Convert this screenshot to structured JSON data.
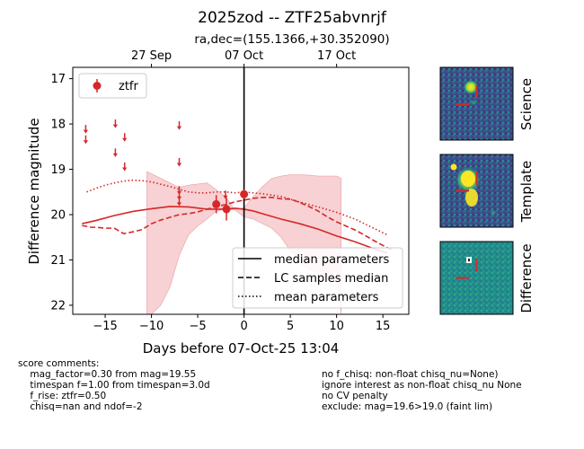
{
  "title": "2025zod -- ZTF25abvnrjf",
  "subtitle": "ra,dec=(155.1366,+30.352090)",
  "chart_data": {
    "type": "scatter",
    "xlabel": "Days before 07-Oct-25 13:04",
    "ylabel": "Difference magnitude",
    "xlim": [
      -18.5,
      17.8
    ],
    "ylim": [
      22.2,
      16.75
    ],
    "y_inverted": true,
    "xticks": [
      -15,
      -10,
      -5,
      0,
      5,
      10,
      15
    ],
    "xtick_labels": [
      "−15",
      "−10",
      "−5",
      "0",
      "5",
      "10",
      "15"
    ],
    "yticks": [
      17,
      18,
      19,
      20,
      21,
      22
    ],
    "ytick_labels": [
      "17",
      "18",
      "19",
      "20",
      "21",
      "22"
    ],
    "top_axis": {
      "ticks": [
        -10,
        0,
        10
      ],
      "labels": [
        "27 Sep",
        "07 Oct",
        "17 Oct"
      ]
    },
    "reference_line_x": 0,
    "legend_filter": {
      "label": "ztfr",
      "placement": "upper-left"
    },
    "legend_models": {
      "placement": "lower-right",
      "entries": [
        "median parameters",
        "LC samples median",
        "mean parameters"
      ]
    },
    "colors": {
      "ztfr": "#d62728",
      "band_fill": "#f5c6c8",
      "ref_line": "#000000"
    },
    "upper_limits": [
      {
        "x": -17.1,
        "y": 18.1
      },
      {
        "x": -17.1,
        "y": 18.33
      },
      {
        "x": -13.9,
        "y": 17.98
      },
      {
        "x": -13.9,
        "y": 18.62
      },
      {
        "x": -12.9,
        "y": 18.28
      },
      {
        "x": -12.9,
        "y": 18.93
      },
      {
        "x": -7.0,
        "y": 18.02
      },
      {
        "x": -7.0,
        "y": 18.83
      },
      {
        "x": -7.0,
        "y": 19.45
      },
      {
        "x": -7.0,
        "y": 19.57
      },
      {
        "x": -7.0,
        "y": 19.7
      },
      {
        "x": -2.0,
        "y": 19.55
      }
    ],
    "detections": [
      {
        "x": -3.0,
        "y": 19.77,
        "err": 0.2
      },
      {
        "x": -1.9,
        "y": 19.88,
        "err": 0.25
      },
      {
        "x": 0.0,
        "y": 19.55,
        "err": 0.1
      }
    ],
    "median_parameters": {
      "x": [
        -17.5,
        -16,
        -14,
        -12,
        -10,
        -8,
        -6,
        -4,
        -2,
        -1,
        0,
        1,
        2,
        4,
        6,
        8,
        10,
        12,
        14,
        15.5
      ],
      "y": [
        20.2,
        20.13,
        20.02,
        19.93,
        19.87,
        19.82,
        19.83,
        19.88,
        19.88,
        19.86,
        19.88,
        19.92,
        19.98,
        20.1,
        20.2,
        20.32,
        20.47,
        20.6,
        20.75,
        20.85
      ]
    },
    "lc_samples_median": {
      "x": [
        -17.5,
        -16.5,
        -16,
        -15,
        -14,
        -13,
        -12,
        -11,
        -10,
        -9,
        -8,
        -7,
        -6,
        -5,
        -4,
        -3,
        -2,
        -1,
        0,
        1,
        2,
        3,
        4,
        5,
        6,
        7,
        8,
        9,
        10,
        11,
        12,
        13,
        14,
        15,
        16
      ],
      "y": [
        20.24,
        20.28,
        20.28,
        20.3,
        20.3,
        20.42,
        20.38,
        20.33,
        20.2,
        20.12,
        20.06,
        20.0,
        19.98,
        19.94,
        19.88,
        19.82,
        19.78,
        19.72,
        19.68,
        19.64,
        19.62,
        19.62,
        19.65,
        19.66,
        19.73,
        19.82,
        19.92,
        20.05,
        20.16,
        20.25,
        20.34,
        20.45,
        20.57,
        20.68,
        20.78
      ]
    },
    "mean_parameters": {
      "x": [
        -17,
        -16,
        -15,
        -14,
        -13,
        -12,
        -11,
        -10,
        -9,
        -8,
        -7,
        -6,
        -5,
        -4,
        -3,
        -2,
        -1,
        0,
        1,
        2,
        4,
        6,
        8,
        10,
        12,
        14,
        15.5
      ],
      "y": [
        19.5,
        19.42,
        19.35,
        19.3,
        19.26,
        19.24,
        19.25,
        19.28,
        19.33,
        19.38,
        19.44,
        19.5,
        19.52,
        19.52,
        19.5,
        19.5,
        19.52,
        19.5,
        19.52,
        19.54,
        19.6,
        19.72,
        19.83,
        19.95,
        20.1,
        20.3,
        20.45
      ]
    },
    "band_upper_edge": {
      "x": [
        -10.5,
        -8,
        -7,
        -6,
        -4,
        -2,
        -1,
        0,
        1,
        2,
        3,
        4,
        5,
        6,
        7,
        8,
        9,
        10,
        10.5
      ],
      "y": [
        19.05,
        19.3,
        19.4,
        19.35,
        19.3,
        19.6,
        19.9,
        19.85,
        19.6,
        19.38,
        19.2,
        19.15,
        19.12,
        19.12,
        19.13,
        19.15,
        19.15,
        19.15,
        19.2
      ]
    },
    "band_lower_edge": {
      "x": [
        -10.5,
        -10,
        -9,
        -8,
        -7,
        -6,
        -5,
        -4,
        -3,
        -2,
        -1,
        0,
        1,
        2,
        3,
        4,
        5,
        6,
        7,
        8,
        9,
        10,
        10.5
      ],
      "y": [
        22.2,
        22.2,
        22.0,
        21.6,
        20.9,
        20.45,
        20.25,
        20.1,
        19.92,
        19.88,
        19.9,
        20.05,
        20.1,
        20.2,
        20.3,
        20.5,
        20.8,
        21.05,
        21.2,
        21.3,
        21.4,
        21.2,
        22.2
      ]
    }
  },
  "thumbnails": [
    {
      "label": "Science"
    },
    {
      "label": "Template"
    },
    {
      "label": "Difference"
    }
  ],
  "comments_left": "score comments:\n    mag_factor=0.30 from mag=19.55\n    timespan f=1.00 from timespan=3.0d\n    f_rise: ztfr=0.50\n    chisq=nan and ndof=-2",
  "comments_right": "no f_chisq: non-float chisq_nu=None)\nignore interest as non-float chisq_nu None\nno CV penalty\nexclude: mag=19.6>19.0 (faint lim)"
}
